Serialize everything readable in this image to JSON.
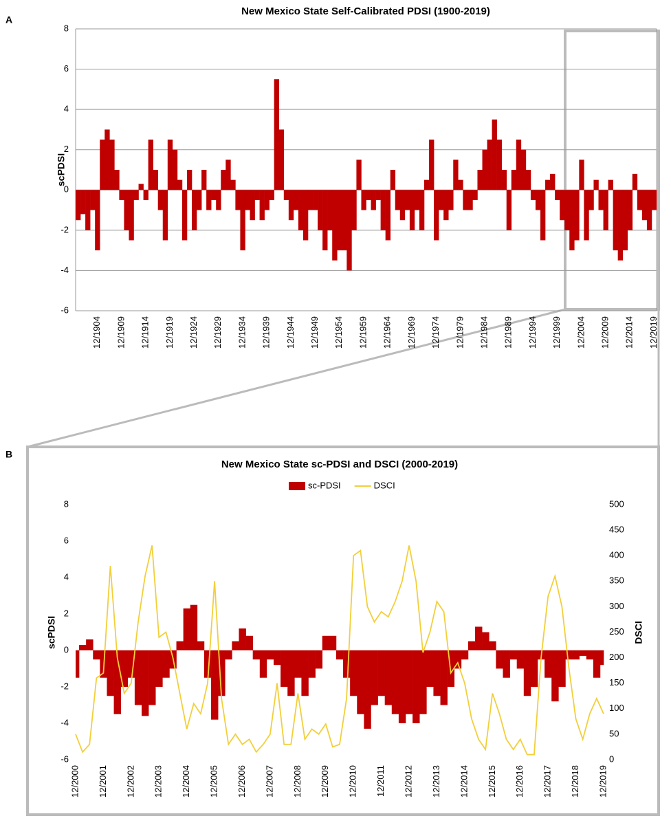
{
  "chart_data": [
    {
      "type": "area",
      "title": "New Mexico State Self-Calibrated PDSI (1900-2019)",
      "panel": "A",
      "y_label": "scPDSI",
      "categories": [
        null,
        null,
        null,
        null,
        "12/1904",
        null,
        null,
        null,
        null,
        "12/1909",
        null,
        null,
        null,
        null,
        "12/1914",
        null,
        null,
        null,
        null,
        "12/1919",
        null,
        null,
        null,
        null,
        "12/1924",
        null,
        null,
        null,
        null,
        "12/1929",
        null,
        null,
        null,
        null,
        "12/1934",
        null,
        null,
        null,
        null,
        "12/1939",
        null,
        null,
        null,
        null,
        "12/1944",
        null,
        null,
        null,
        null,
        "12/1949",
        null,
        null,
        null,
        null,
        "12/1954",
        null,
        null,
        null,
        null,
        "12/1959",
        null,
        null,
        null,
        null,
        "12/1964",
        null,
        null,
        null,
        null,
        "12/1969",
        null,
        null,
        null,
        null,
        "12/1974",
        null,
        null,
        null,
        null,
        "12/1979",
        null,
        null,
        null,
        null,
        "12/1984",
        null,
        null,
        null,
        null,
        "12/1989",
        null,
        null,
        null,
        null,
        "12/1994",
        null,
        null,
        null,
        null,
        "12/1999",
        null,
        null,
        null,
        null,
        "12/2004",
        null,
        null,
        null,
        null,
        "12/2009",
        null,
        null,
        null,
        null,
        "12/2014",
        null,
        null,
        null,
        null,
        "12/2019"
      ],
      "values": [
        -1.5,
        -1.2,
        -2,
        -1,
        -3,
        2.5,
        3,
        2.5,
        1,
        -0.5,
        -2,
        -2.5,
        -0.5,
        0.3,
        -0.5,
        2.5,
        1,
        -1,
        -2.5,
        2.5,
        2,
        0.5,
        -2.5,
        1,
        -2,
        -1,
        1,
        -1,
        -0.5,
        -1,
        1,
        1.5,
        0.5,
        -1,
        -3,
        -1,
        -1.5,
        -0.5,
        -1.5,
        -1,
        -0.5,
        5.5,
        3,
        -0.5,
        -1.5,
        -1,
        -2,
        -2.5,
        -1,
        -1,
        -2,
        -3,
        -2,
        -3.5,
        -3,
        -3,
        -4,
        -2,
        1.5,
        -1,
        -0.5,
        -1,
        -0.5,
        -2,
        -2.5,
        1,
        -1,
        -1.5,
        -1,
        -2,
        -1,
        -2,
        0.5,
        2.5,
        -2.5,
        -1,
        -1.5,
        -1,
        1.5,
        0.5,
        -1,
        -1,
        -0.5,
        1,
        2,
        2.5,
        3.5,
        2.5,
        1,
        -2,
        1,
        2.5,
        2,
        1,
        -0.5,
        -1,
        -2.5,
        0.5,
        0.8,
        -0.5,
        -1.5,
        -2,
        -3,
        -2.5,
        1.5,
        -2.5,
        -1,
        0.5,
        -1,
        -2,
        0.5,
        -3,
        -3.5,
        -3,
        -2,
        0.8,
        -1,
        -1.5,
        -2,
        -1
      ],
      "color": "#c00000",
      "ylim": [
        -6,
        8
      ],
      "yticks": [
        -6,
        -4,
        -2,
        0,
        2,
        4,
        6,
        8
      ],
      "grid": true
    },
    {
      "type": "combo",
      "title": "New Mexico State sc-PDSI and DSCI (2000-2019)",
      "panel": "B",
      "y_label": "scPDSI",
      "y2_label": "DSCI",
      "categories": [
        "12/2000",
        null,
        null,
        null,
        "12/2001",
        null,
        null,
        null,
        "12/2002",
        null,
        null,
        null,
        "12/2003",
        null,
        null,
        null,
        "12/2004",
        null,
        null,
        null,
        "12/2005",
        null,
        null,
        null,
        "12/2006",
        null,
        null,
        null,
        "12/2007",
        null,
        null,
        null,
        "12/2008",
        null,
        null,
        null,
        "12/2009",
        null,
        null,
        null,
        "12/2010",
        null,
        null,
        null,
        "12/2011",
        null,
        null,
        null,
        "12/2012",
        null,
        null,
        null,
        "12/2013",
        null,
        null,
        null,
        "12/2014",
        null,
        null,
        null,
        "12/2015",
        null,
        null,
        null,
        "12/2016",
        null,
        null,
        null,
        "12/2017",
        null,
        null,
        null,
        "12/2018",
        null,
        null,
        null,
        "12/2019"
      ],
      "series": [
        {
          "name": "sc-PDSI",
          "type": "area",
          "color": "#c00000",
          "values": [
            -1.5,
            0.3,
            0.6,
            -0.5,
            -1.5,
            -2.5,
            -3.5,
            -2,
            -1.5,
            -3,
            -3.6,
            -3,
            -2,
            -1.5,
            -1,
            0.5,
            2.3,
            2.5,
            0.5,
            -1.5,
            -3.8,
            -2.5,
            -0.5,
            0.5,
            1.2,
            0.8,
            -0.5,
            -1.5,
            -0.5,
            -0.8,
            -2,
            -2.5,
            -1.5,
            -2.5,
            -1.5,
            -1,
            0.8,
            0.8,
            -0.5,
            -1.5,
            -2.5,
            -3.5,
            -4.3,
            -3,
            -2.5,
            -3,
            -3.5,
            -4,
            -3.5,
            -4,
            -3.5,
            -2,
            -2.5,
            -3,
            -2,
            -1,
            -0.5,
            0.5,
            1.3,
            1,
            0.5,
            -1,
            -1.5,
            -0.5,
            -1,
            -2.5,
            -2,
            -0.5,
            -1.5,
            -2.8,
            -2,
            -0.5,
            -0.5,
            -0.3,
            -0.5,
            -1.5,
            -0.8
          ]
        },
        {
          "name": "DSCI",
          "type": "line",
          "color": "#f2cf3a",
          "axis": "y2",
          "values": [
            50,
            15,
            30,
            160,
            170,
            380,
            200,
            130,
            150,
            270,
            360,
            420,
            240,
            250,
            200,
            130,
            60,
            110,
            90,
            150,
            350,
            120,
            30,
            50,
            30,
            40,
            15,
            30,
            50,
            150,
            30,
            30,
            130,
            40,
            60,
            50,
            70,
            25,
            30,
            120,
            400,
            410,
            300,
            270,
            290,
            280,
            310,
            350,
            420,
            350,
            210,
            250,
            310,
            290,
            170,
            190,
            150,
            80,
            40,
            20,
            130,
            90,
            40,
            20,
            40,
            10,
            10,
            200,
            320,
            360,
            300,
            180,
            80,
            40,
            90,
            120,
            90
          ]
        }
      ],
      "ylim": [
        -6,
        8
      ],
      "yticks": [
        -6,
        -4,
        -2,
        0,
        2,
        4,
        6,
        8
      ],
      "y2lim": [
        0,
        500
      ],
      "y2ticks": [
        0,
        50,
        100,
        150,
        200,
        250,
        300,
        350,
        400,
        450,
        500
      ],
      "grid": false
    }
  ]
}
